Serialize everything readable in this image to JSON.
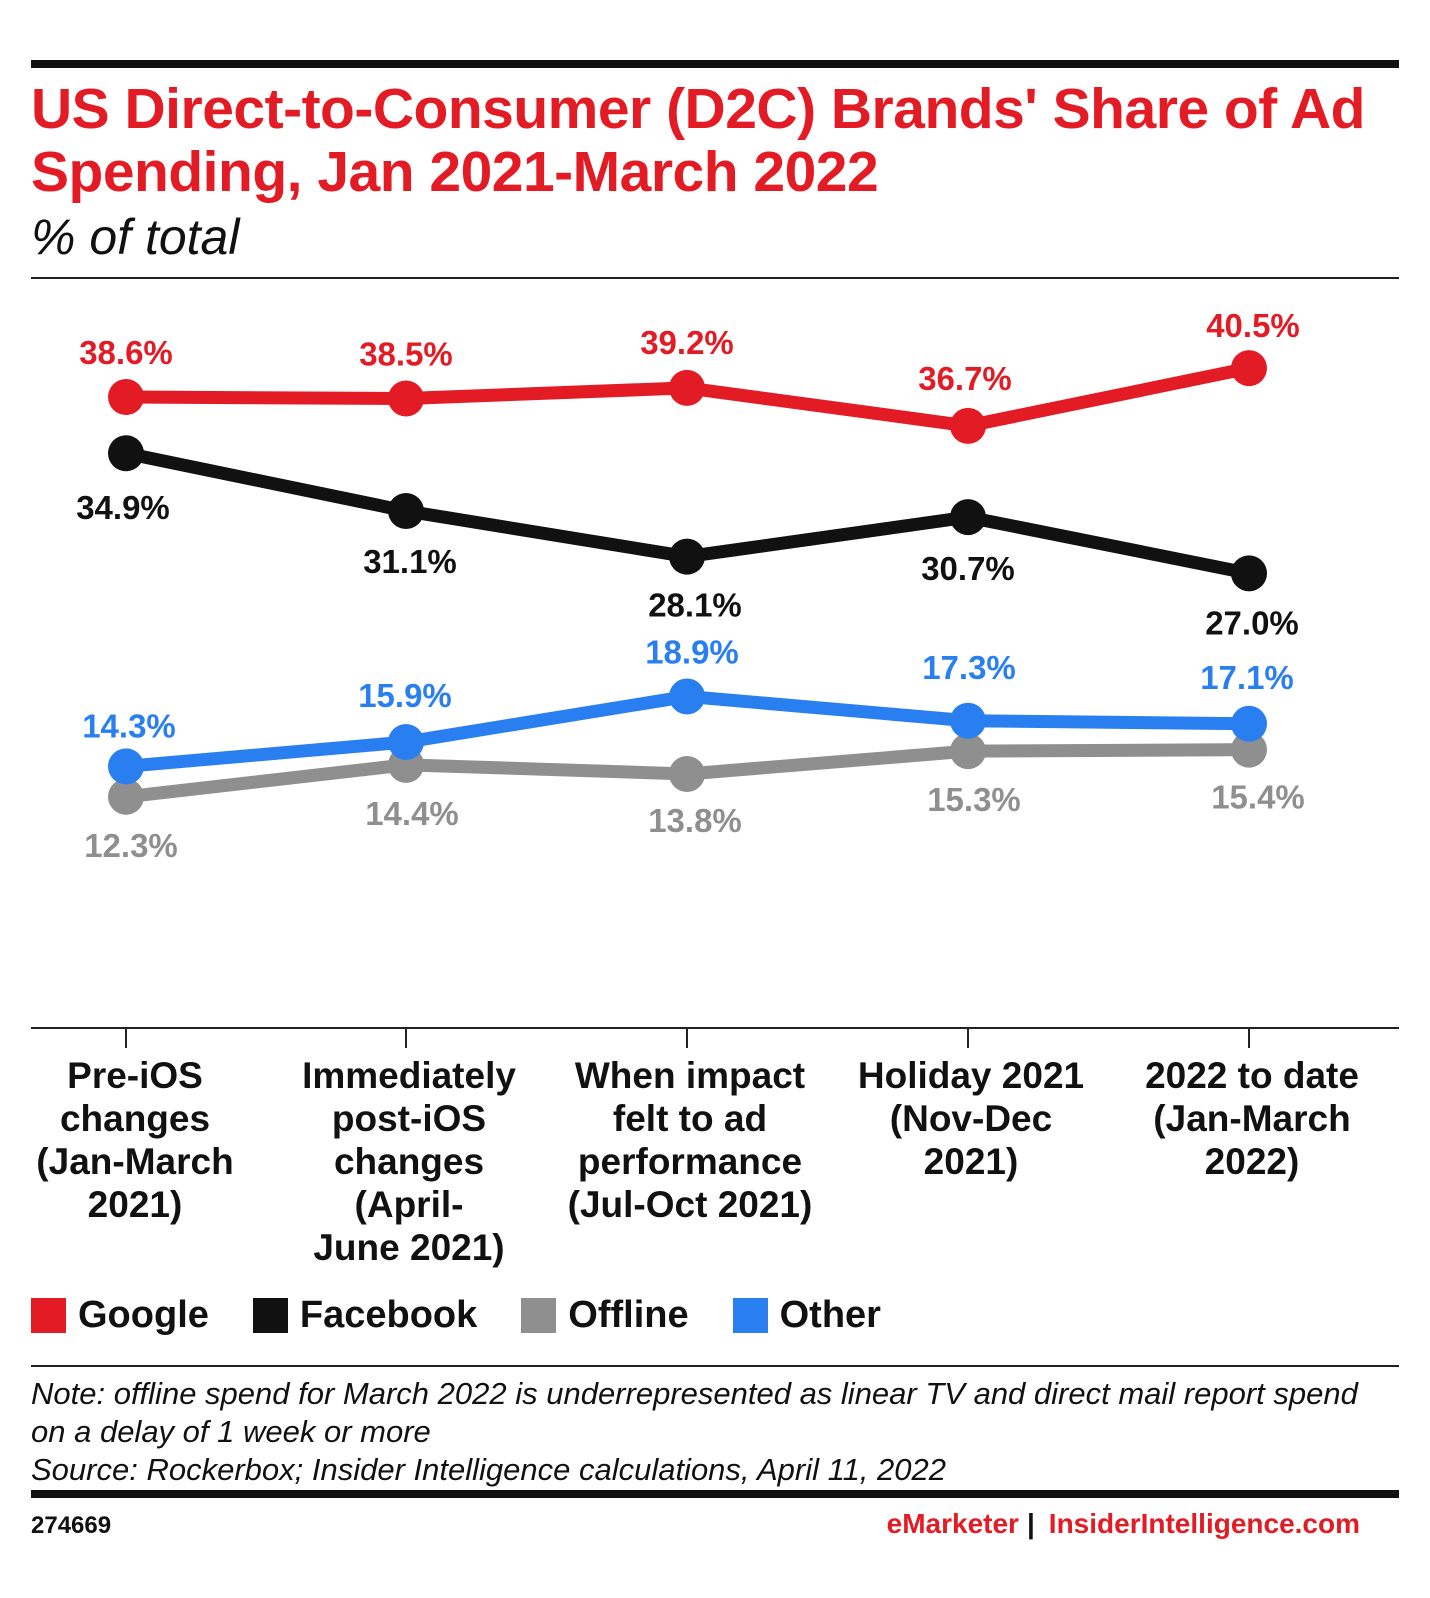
{
  "header": {
    "title": "US Direct-to-Consumer (D2C) Brands' Share of Ad Spending, Jan 2021-March 2022",
    "subtitle": "% of total"
  },
  "chart_data": {
    "type": "line",
    "title": "US Direct-to-Consumer (D2C) Brands' Share of Ad Spending, Jan 2021-March 2022",
    "subtitle": "% of total",
    "categories": [
      "Pre-iOS changes (Jan-March 2021)",
      "Immediately post-iOS changes (April-June 2021)",
      "When impact felt to ad performance (Jul-Oct 2021)",
      "Holiday 2021 (Nov-Dec 2021)",
      "2022 to date (Jan-March 2022)"
    ],
    "category_lines": [
      [
        "Pre-iOS",
        "changes",
        "(Jan-March",
        "2021)"
      ],
      [
        "Immediately",
        "post-iOS",
        "changes",
        "(April-",
        "June 2021)"
      ],
      [
        "When impact",
        "felt to ad",
        "performance",
        "(Jul-Oct 2021)"
      ],
      [
        "Holiday 2021",
        "(Nov-Dec",
        "2021)"
      ],
      [
        "2022 to date",
        "(Jan-March",
        "2022)"
      ]
    ],
    "series": [
      {
        "name": "Google",
        "color": "#e21b24",
        "values": [
          38.6,
          38.5,
          39.2,
          36.7,
          40.5
        ],
        "labels": [
          "38.6%",
          "38.5%",
          "39.2%",
          "36.7%",
          "40.5%"
        ]
      },
      {
        "name": "Facebook",
        "color": "#111111",
        "values": [
          34.9,
          31.1,
          28.1,
          30.7,
          27.0
        ],
        "labels": [
          "34.9%",
          "31.1%",
          "28.1%",
          "30.7%",
          "27.0%"
        ]
      },
      {
        "name": "Offline",
        "color": "#8f8f8f",
        "values": [
          12.3,
          14.4,
          13.8,
          15.3,
          15.4
        ],
        "labels": [
          "12.3%",
          "14.4%",
          "13.8%",
          "15.3%",
          "15.4%"
        ]
      },
      {
        "name": "Other",
        "color": "#2a7ff0",
        "values": [
          14.3,
          15.9,
          18.9,
          17.3,
          17.1
        ],
        "labels": [
          "14.3%",
          "15.9%",
          "18.9%",
          "17.3%",
          "17.1%"
        ]
      }
    ],
    "xlabel": "",
    "ylabel": "",
    "ylim": [
      8,
      43
    ],
    "grid": false,
    "legend_position": "bottom-left"
  },
  "legend": [
    {
      "label": "Google",
      "color": "#e21b24"
    },
    {
      "label": "Facebook",
      "color": "#111111"
    },
    {
      "label": "Offline",
      "color": "#8f8f8f"
    },
    {
      "label": "Other",
      "color": "#2a7ff0"
    }
  ],
  "footer": {
    "note": "Note: offline spend for March 2022 is underrepresented as linear TV and direct mail report spend on a delay of 1 week or more",
    "source": "Source: Rockerbox; Insider Intelligence calculations, April 11, 2022",
    "chart_id": "274669",
    "brand_a": "eMarketer",
    "brand_sep": "|",
    "brand_b": "InsiderIntelligence.com"
  }
}
